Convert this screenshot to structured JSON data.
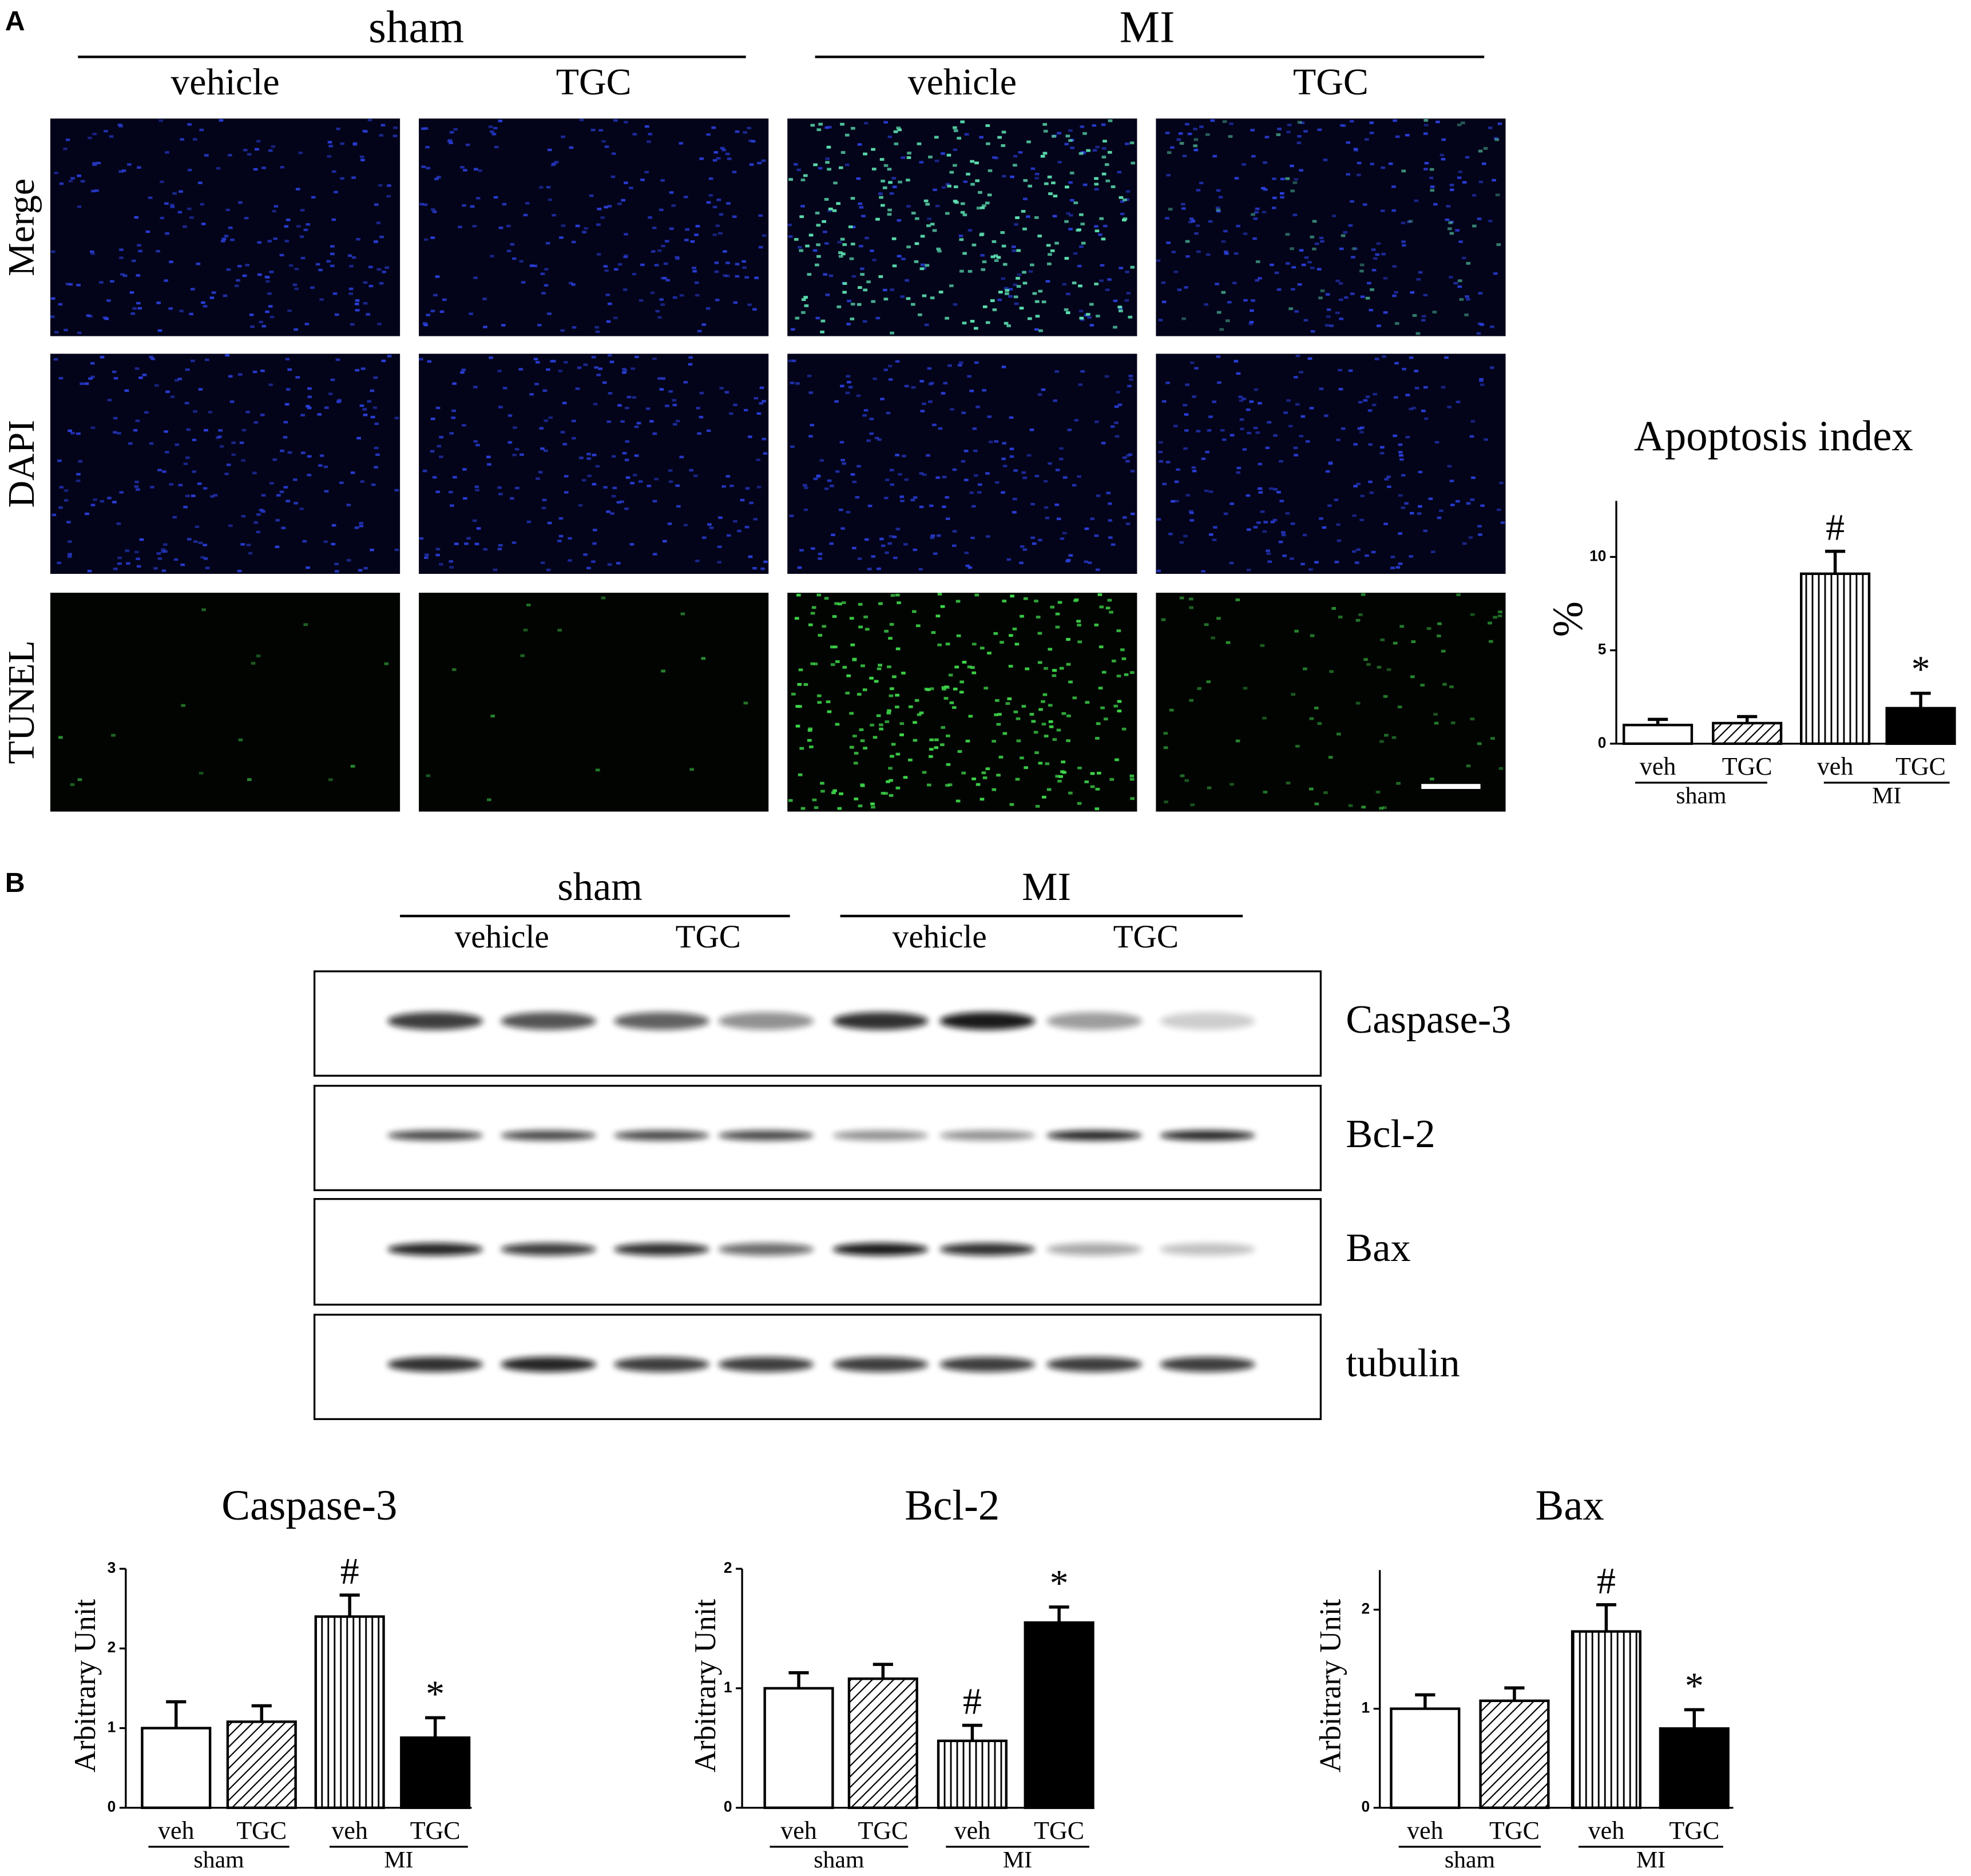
{
  "panel_a": {
    "label": "A",
    "groups": [
      "sham",
      "MI"
    ],
    "conditions": [
      "vehicle",
      "TGC",
      "vehicle",
      "TGC"
    ],
    "rows": [
      "Merge",
      "DAPI",
      "TUNEL"
    ]
  },
  "panel_b": {
    "label": "B",
    "groups": [
      "sham",
      "MI"
    ],
    "conditions": [
      "vehicle",
      "TGC",
      "vehicle",
      "TGC"
    ],
    "blots": [
      "Caspase-3",
      "Bcl-2",
      "Bax",
      "tubulin"
    ]
  },
  "chart_data": [
    {
      "type": "bar",
      "title": "Apoptosis index",
      "y_label": "%",
      "categories": [
        "veh",
        "TGC",
        "veh",
        "TGC"
      ],
      "groups": [
        "sham",
        "MI"
      ],
      "values": [
        1.0,
        1.1,
        9.1,
        1.9
      ],
      "errors": [
        0.3,
        0.35,
        1.2,
        0.8
      ],
      "bar_labels": [
        null,
        null,
        "#",
        "*"
      ],
      "fills": [
        "white",
        "hatch",
        "vertical",
        "black"
      ],
      "ylim": [
        0,
        13
      ],
      "yticks": [
        0,
        5,
        10
      ]
    },
    {
      "type": "bar",
      "title": "Caspase-3",
      "y_label": "Arbitrary Unit",
      "categories": [
        "veh",
        "TGC",
        "veh",
        "TGC"
      ],
      "groups": [
        "sham",
        "MI"
      ],
      "values": [
        1.0,
        1.08,
        2.4,
        0.88
      ],
      "errors": [
        0.33,
        0.2,
        0.27,
        0.25
      ],
      "bar_labels": [
        null,
        null,
        "#",
        "*"
      ],
      "fills": [
        "white",
        "hatch",
        "vertical",
        "black"
      ],
      "ylim": [
        0,
        3
      ],
      "yticks": [
        0,
        1,
        2,
        3
      ]
    },
    {
      "type": "bar",
      "title": "Bcl-2",
      "y_label": "Arbitrary Unit",
      "categories": [
        "veh",
        "TGC",
        "veh",
        "TGC"
      ],
      "groups": [
        "sham",
        "MI"
      ],
      "values": [
        1.0,
        1.08,
        0.56,
        1.55
      ],
      "errors": [
        0.13,
        0.12,
        0.13,
        0.13
      ],
      "bar_labels": [
        null,
        null,
        "#",
        "*"
      ],
      "fills": [
        "white",
        "hatch",
        "vertical",
        "black"
      ],
      "ylim": [
        0,
        2
      ],
      "yticks": [
        0,
        1,
        2
      ]
    },
    {
      "type": "bar",
      "title": "Bax",
      "y_label": "Arbitrary Unit",
      "categories": [
        "veh",
        "TGC",
        "veh",
        "TGC"
      ],
      "groups": [
        "sham",
        "MI"
      ],
      "values": [
        1.0,
        1.08,
        1.78,
        0.8
      ],
      "errors": [
        0.14,
        0.13,
        0.27,
        0.19
      ],
      "bar_labels": [
        null,
        null,
        "#",
        "*"
      ],
      "fills": [
        "white",
        "hatch",
        "vertical",
        "black"
      ],
      "ylim": [
        0,
        2.4
      ],
      "yticks": [
        0,
        1,
        2
      ]
    }
  ]
}
